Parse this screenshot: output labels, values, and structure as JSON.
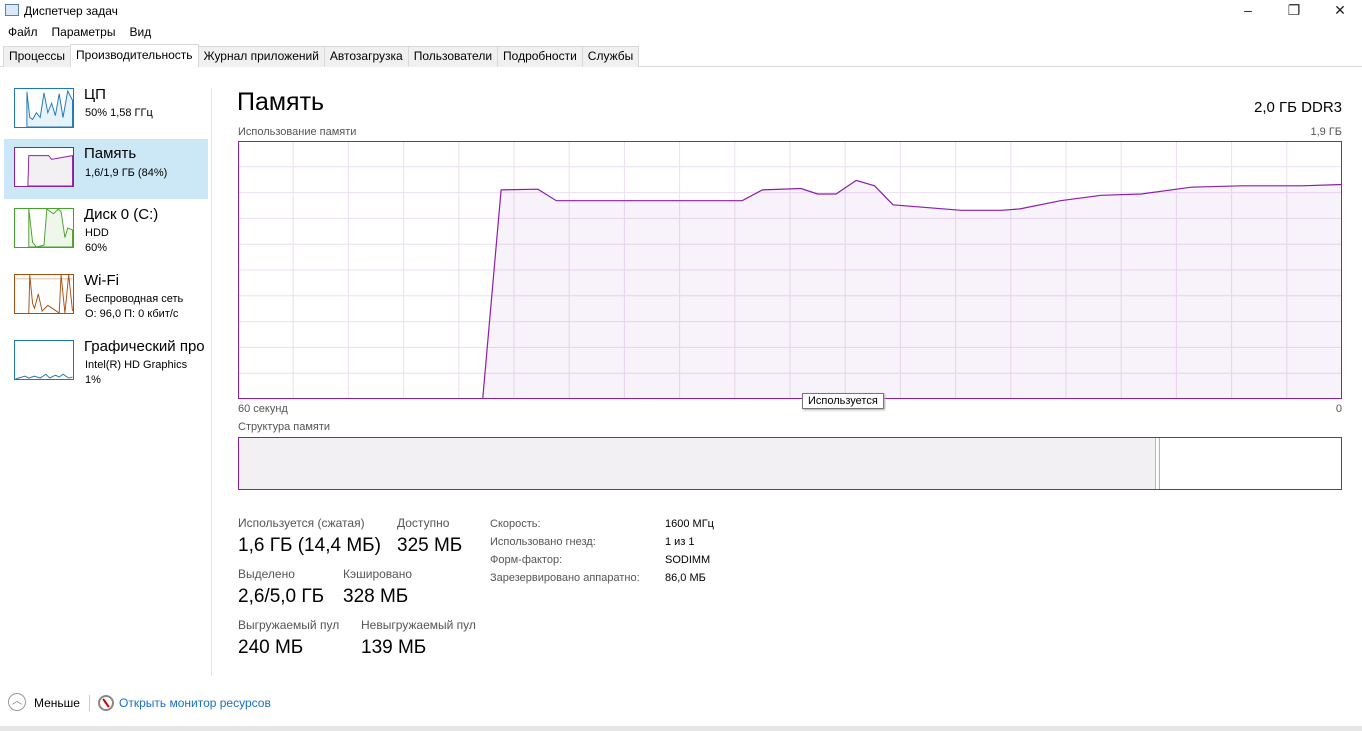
{
  "window": {
    "title": "Диспетчер задач",
    "minimize": "–",
    "maximize": "❐",
    "close": "✕"
  },
  "menu": [
    "Файл",
    "Параметры",
    "Вид"
  ],
  "tabs": [
    {
      "label": "Процессы"
    },
    {
      "label": "Производительность",
      "active": true
    },
    {
      "label": "Журнал приложений"
    },
    {
      "label": "Автозагрузка"
    },
    {
      "label": "Пользователи"
    },
    {
      "label": "Подробности"
    },
    {
      "label": "Службы"
    }
  ],
  "sidebar": {
    "items": [
      {
        "name": "ЦП",
        "sub1": "50% 1,58 ГГц",
        "color": "#1f78b4"
      },
      {
        "name": "Память",
        "sub1": "1,6/1,9 ГБ (84%)",
        "color": "#8b1fa8",
        "selected": true
      },
      {
        "name": "Диск 0 (C:)",
        "sub1": "HDD",
        "sub2": "60%",
        "color": "#4aa02c"
      },
      {
        "name": "Wi-Fi",
        "sub1": "Беспроводная сеть",
        "sub2": "О: 96,0 П: 0 кбит/с",
        "color": "#a7500f"
      },
      {
        "name": "Графический про",
        "sub1": "Intel(R) HD Graphics",
        "sub2": "1%",
        "color": "#1f78b4"
      }
    ]
  },
  "main": {
    "title": "Память",
    "capacity": "2,0 ГБ DDR3",
    "usage_label": "Использование памяти",
    "max_label": "1,9 ГБ",
    "x_left": "60 секунд",
    "x_right": "0",
    "tooltip": "Используется",
    "structure_label": "Структура памяти",
    "stats": {
      "used_label": "Используется (сжатая)",
      "used": "1,6 ГБ (14,4 МБ)",
      "avail_label": "Доступно",
      "avail": "325 МБ",
      "commit_label": "Выделено",
      "commit": "2,6/5,0 ГБ",
      "cached_label": "Кэшировано",
      "cached": "328 МБ",
      "paged_label": "Выгружаемый пул",
      "paged": "240 МБ",
      "nonpaged_label": "Невыгружаемый пул",
      "nonpaged": "139 МБ"
    },
    "props": [
      {
        "k": "Скорость:",
        "v": "1600 МГц"
      },
      {
        "k": "Использовано гнезд:",
        "v": "1 из 1"
      },
      {
        "k": "Форм-фактор:",
        "v": "SODIMM"
      },
      {
        "k": "Зарезервировано аппаратно:",
        "v": "86,0 МБ"
      }
    ]
  },
  "footer": {
    "less": "Меньше",
    "open_monitor": "Открыть монитор ресурсов"
  },
  "chart_data": {
    "type": "area",
    "xlabel": "",
    "ylabel": "",
    "xlim": [
      60,
      0
    ],
    "ylim": [
      0,
      1.9
    ],
    "grid": true,
    "color": "#8b1fa8",
    "x": [
      46.7,
      45.7,
      43.7,
      42.7,
      32.6,
      31.5,
      29.4,
      28.5,
      27.5,
      26.4,
      25.4,
      24.4,
      20.7,
      18.5,
      17.5,
      15.3,
      13.1,
      10.9,
      8.2,
      5.5,
      2.2,
      0
    ],
    "y": [
      0,
      1.54,
      1.545,
      1.46,
      1.46,
      1.54,
      1.55,
      1.51,
      1.51,
      1.61,
      1.57,
      1.43,
      1.39,
      1.39,
      1.4,
      1.46,
      1.5,
      1.51,
      1.56,
      1.57,
      1.57,
      1.58
    ]
  }
}
